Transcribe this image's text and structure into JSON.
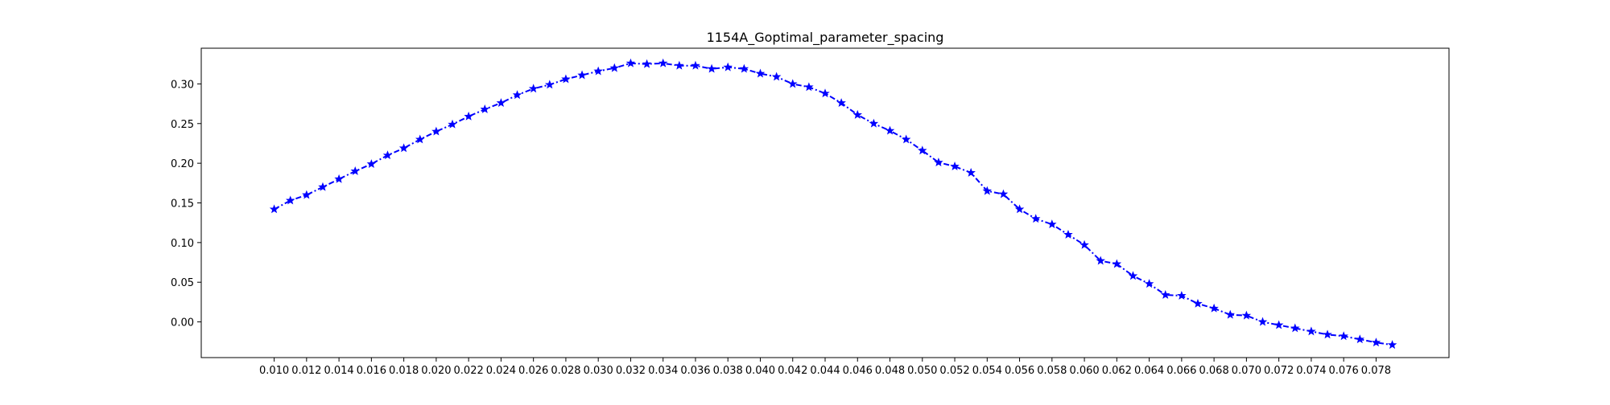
{
  "chart_data": {
    "type": "line",
    "title": "1154A_Goptimal_parameter_spacing",
    "xlabel": "",
    "ylabel": "",
    "xlim": [
      0.0055,
      0.0825
    ],
    "ylim": [
      -0.045,
      0.345
    ],
    "x_ticks": [
      "0.010",
      "0.012",
      "0.014",
      "0.016",
      "0.018",
      "0.020",
      "0.022",
      "0.024",
      "0.026",
      "0.028",
      "0.030",
      "0.032",
      "0.034",
      "0.036",
      "0.038",
      "0.040",
      "0.042",
      "0.044",
      "0.046",
      "0.048",
      "0.050",
      "0.052",
      "0.054",
      "0.056",
      "0.058",
      "0.060",
      "0.062",
      "0.064",
      "0.066",
      "0.068",
      "0.070",
      "0.072",
      "0.074",
      "0.076",
      "0.078"
    ],
    "y_ticks": [
      "0.00",
      "0.05",
      "0.10",
      "0.15",
      "0.20",
      "0.25",
      "0.30"
    ],
    "grid": false,
    "legend": "none",
    "series": [
      {
        "color": "#0000ff",
        "marker": "star",
        "line_style": "dash-dot",
        "x": [
          0.01,
          0.011,
          0.012,
          0.013,
          0.014,
          0.015,
          0.016,
          0.017,
          0.018,
          0.019,
          0.02,
          0.021,
          0.022,
          0.023,
          0.024,
          0.025,
          0.026,
          0.027,
          0.028,
          0.029,
          0.03,
          0.031,
          0.032,
          0.033,
          0.034,
          0.035,
          0.036,
          0.037,
          0.038,
          0.039,
          0.04,
          0.041,
          0.042,
          0.043,
          0.044,
          0.045,
          0.046,
          0.047,
          0.048,
          0.049,
          0.05,
          0.051,
          0.052,
          0.053,
          0.054,
          0.055,
          0.056,
          0.057,
          0.058,
          0.059,
          0.06,
          0.061,
          0.062,
          0.063,
          0.064,
          0.065,
          0.066,
          0.067,
          0.068,
          0.069,
          0.07,
          0.071,
          0.072,
          0.073,
          0.074,
          0.075,
          0.076,
          0.077,
          0.078,
          0.079
        ],
        "y": [
          0.142,
          0.153,
          0.16,
          0.17,
          0.18,
          0.19,
          0.199,
          0.21,
          0.219,
          0.23,
          0.24,
          0.249,
          0.259,
          0.268,
          0.276,
          0.286,
          0.294,
          0.299,
          0.306,
          0.311,
          0.316,
          0.32,
          0.326,
          0.325,
          0.326,
          0.323,
          0.323,
          0.319,
          0.321,
          0.319,
          0.313,
          0.309,
          0.3,
          0.296,
          0.288,
          0.276,
          0.261,
          0.25,
          0.241,
          0.23,
          0.216,
          0.201,
          0.196,
          0.188,
          0.165,
          0.161,
          0.142,
          0.13,
          0.123,
          0.11,
          0.097,
          0.077,
          0.073,
          0.058,
          0.048,
          0.034,
          0.033,
          0.023,
          0.017,
          0.009,
          0.008,
          0.0,
          -0.004,
          -0.008,
          -0.012,
          -0.016,
          -0.018,
          -0.022,
          -0.026,
          -0.029
        ]
      }
    ]
  }
}
